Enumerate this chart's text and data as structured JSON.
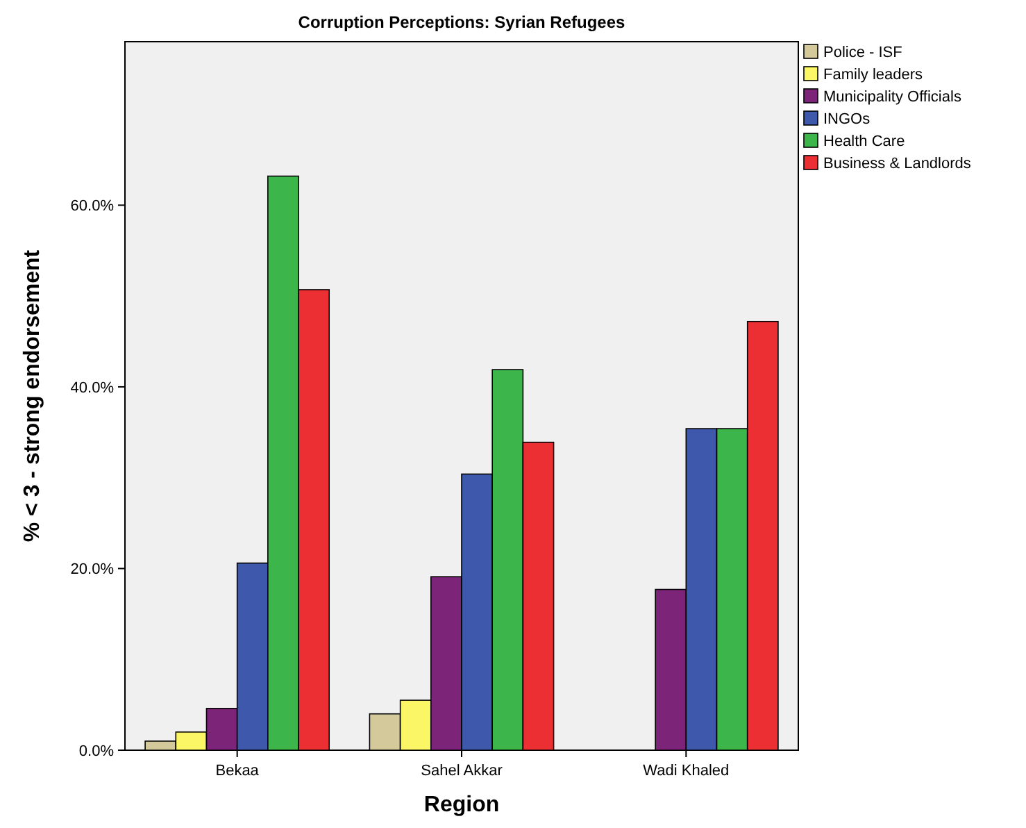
{
  "chart_data": {
    "type": "bar",
    "title": "Corruption Perceptions: Syrian Refugees",
    "xlabel": "Region",
    "ylabel": "% < 3 - strong endorsement",
    "categories": [
      "Bekaa",
      "Sahel Akkar",
      "Wadi Khaled"
    ],
    "series": [
      {
        "name": "Police - ISF",
        "color": "#d4c99a",
        "values": [
          1.0,
          4.0,
          0
        ]
      },
      {
        "name": "Family leaders",
        "color": "#fbf665",
        "values": [
          2.0,
          5.5,
          0
        ]
      },
      {
        "name": "Municipality Officials",
        "color": "#7b2478",
        "values": [
          4.6,
          19.1,
          17.7
        ]
      },
      {
        "name": "INGOs",
        "color": "#3e58ac",
        "values": [
          20.6,
          30.4,
          35.4
        ]
      },
      {
        "name": "Health Care",
        "color": "#3cb64a",
        "values": [
          63.2,
          41.9,
          35.4
        ]
      },
      {
        "name": "Business & Landlords",
        "color": "#ec2f33",
        "values": [
          50.7,
          33.9,
          47.2
        ]
      }
    ],
    "ylim": [
      0,
      78
    ],
    "yticks": [
      {
        "value": 0,
        "label": "0.0%"
      },
      {
        "value": 20,
        "label": "20.0%"
      },
      {
        "value": 40,
        "label": "40.0%"
      },
      {
        "value": 60,
        "label": "60.0%"
      }
    ],
    "grid": false,
    "legend": "top right"
  }
}
